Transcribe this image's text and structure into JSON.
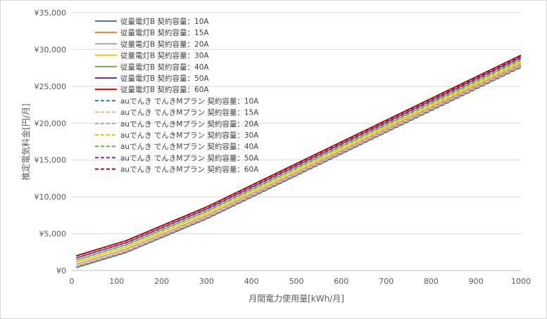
{
  "chart_data": {
    "type": "line",
    "title": "",
    "xlabel": "月間電力使用量[kWh/月]",
    "ylabel": "推定電気料金[円/月]",
    "xlim": [
      0,
      1000
    ],
    "ylim": [
      0,
      35000
    ],
    "x_ticks": [
      "0",
      "100",
      "200",
      "300",
      "400",
      "500",
      "600",
      "700",
      "800",
      "900",
      "1000"
    ],
    "y_ticks": [
      "¥0",
      "¥5,000",
      "¥10,000",
      "¥15,000",
      "¥20,000",
      "¥25,000",
      "¥30,000",
      "¥35,000"
    ],
    "grid": "horizontal",
    "legend_position": "top-left",
    "x": [
      10,
      120,
      300,
      1000
    ],
    "series": [
      {
        "name": "従量電灯B 契約容量：10A",
        "color": "#4472C4",
        "dash": false,
        "values": [
          420,
          2450,
          7050,
          27650
        ]
      },
      {
        "name": "従量電灯B 契約容量：15A",
        "color": "#ED7D31",
        "dash": false,
        "values": [
          570,
          2600,
          7200,
          27800
        ]
      },
      {
        "name": "従量電灯B 契約容量：20A",
        "color": "#A5A5A5",
        "dash": false,
        "values": [
          850,
          2880,
          7480,
          28080
        ]
      },
      {
        "name": "従量電灯B 契約容量：30A",
        "color": "#FFC000",
        "dash": false,
        "values": [
          1150,
          3180,
          7780,
          28380
        ]
      },
      {
        "name": "従量電灯B 契約容量：40A",
        "color": "#70AD47",
        "dash": false,
        "values": [
          1430,
          3460,
          8060,
          28660
        ]
      },
      {
        "name": "従量電灯B 契約容量：50A",
        "color": "#7030A0",
        "dash": false,
        "values": [
          1720,
          3750,
          8350,
          28950
        ]
      },
      {
        "name": "従量電灯B 契約容量：60A",
        "color": "#C00000",
        "dash": false,
        "values": [
          2000,
          4030,
          8630,
          29230
        ]
      },
      {
        "name": "auでんき でんきMプラン 契約容量：10A",
        "color": "#2E75B6",
        "dash": true,
        "values": [
          400,
          2420,
          7000,
          27560
        ]
      },
      {
        "name": "auでんき でんきMプラン 契約容量：15A",
        "color": "#F4B183",
        "dash": true,
        "values": [
          550,
          2570,
          7150,
          27710
        ]
      },
      {
        "name": "auでんき でんきMプラン 契約容量：20A",
        "color": "#A5A5A5",
        "dash": true,
        "values": [
          830,
          2850,
          7430,
          27990
        ]
      },
      {
        "name": "auでんき でんきMプラン 契約容量：30A",
        "color": "#FFC000",
        "dash": true,
        "values": [
          1130,
          3150,
          7730,
          28290
        ]
      },
      {
        "name": "auでんき でんきMプラン 契約容量：40A",
        "color": "#70AD47",
        "dash": true,
        "values": [
          1410,
          3430,
          8010,
          28570
        ]
      },
      {
        "name": "auでんき でんきMプラン 契約容量：50A",
        "color": "#7030A0",
        "dash": true,
        "values": [
          1700,
          3720,
          8300,
          28860
        ]
      },
      {
        "name": "auでんき でんきMプラン 契約容量：60A",
        "color": "#C00000",
        "dash": true,
        "values": [
          1980,
          4000,
          8580,
          29140
        ]
      }
    ]
  }
}
